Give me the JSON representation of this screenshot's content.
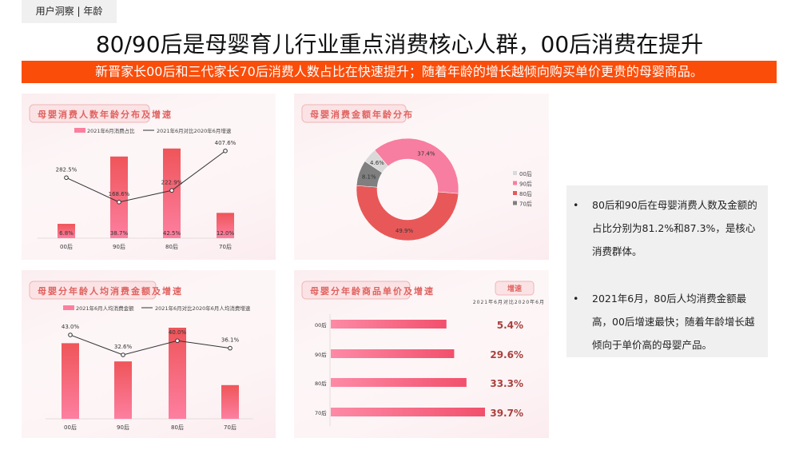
{
  "header": {
    "tag": "用户洞察 | 年龄",
    "title": "80/90后是母婴育儿行业重点消费核心人群，00后消费在提升",
    "banner": "新晋家长00后和三代家长70后消费人数占比在快速提升；随着年龄的增长越倾向购买单价更贵的母婴商品。"
  },
  "colors": {
    "banner": "#fa4d0a",
    "bar_top": "#ef5559",
    "bar_bottom": "#fd7fa0",
    "donut_00": "#d9d9d9",
    "donut_90": "#f77ea0",
    "donut_80": "#e85858",
    "donut_70": "#7f7f7f",
    "growth_text": "#a8413d"
  },
  "chart_data": [
    {
      "type": "bar",
      "title": "母婴消费人数年龄分布及增速",
      "categories": [
        "00后",
        "90后",
        "80后",
        "70后"
      ],
      "series": [
        {
          "name": "2021年6月消费占比",
          "kind": "bar",
          "values": [
            6.8,
            38.7,
            42.5,
            12.0
          ],
          "labels": [
            "6.8%",
            "38.7%",
            "42.5%",
            "12.0%"
          ]
        },
        {
          "name": "2021年6月对比2020年6月增速",
          "kind": "line",
          "values": [
            282.5,
            168.6,
            222.9,
            407.6
          ],
          "labels": [
            "282.5%",
            "168.6%",
            "222.9%",
            "407.6%"
          ]
        }
      ]
    },
    {
      "type": "pie",
      "title": "母婴消费金额年龄分布",
      "donut": true,
      "categories": [
        "00后",
        "90后",
        "80后",
        "70后"
      ],
      "values": [
        4.6,
        37.4,
        49.9,
        8.1
      ],
      "labels": [
        "4.6%",
        "37.4%",
        "49.9%",
        "8.1%"
      ],
      "legend": "right"
    },
    {
      "type": "bar",
      "title": "母婴分年龄人均消费金额及增速",
      "categories": [
        "00后",
        "90后",
        "80后",
        "70后"
      ],
      "series": [
        {
          "name": "2021年6月人均消费金额",
          "kind": "bar",
          "values_relative": [
            83,
            63,
            100,
            37
          ]
        },
        {
          "name": "2021年6月对比2020年6月人均消费增速",
          "kind": "line",
          "values": [
            43.0,
            32.6,
            40.0,
            36.1
          ],
          "labels": [
            "43.0%",
            "32.6%",
            "40.0%",
            "36.1%"
          ]
        }
      ]
    },
    {
      "type": "bar",
      "orientation": "horizontal",
      "title": "母婴分年龄商品单价及增速",
      "categories": [
        "00后",
        "90后",
        "80后",
        "70后"
      ],
      "values_relative": [
        75,
        80,
        88,
        100
      ],
      "growth_header": "增速",
      "growth_subheader": "2021年6月对比2020年6月",
      "growth": [
        "5.4%",
        "29.6%",
        "33.3%",
        "39.7%"
      ]
    }
  ],
  "notes": [
    {
      "bullet": "•",
      "text": "80后和90后在母婴消费人数及金额的占比分别为81.2%和87.3%，是核心消费群体。"
    },
    {
      "bullet": "•",
      "text": "2021年6月，80后人均消费金额最高，00后增速最快；随着年龄增长越倾向于单价高的母婴产品。"
    }
  ]
}
